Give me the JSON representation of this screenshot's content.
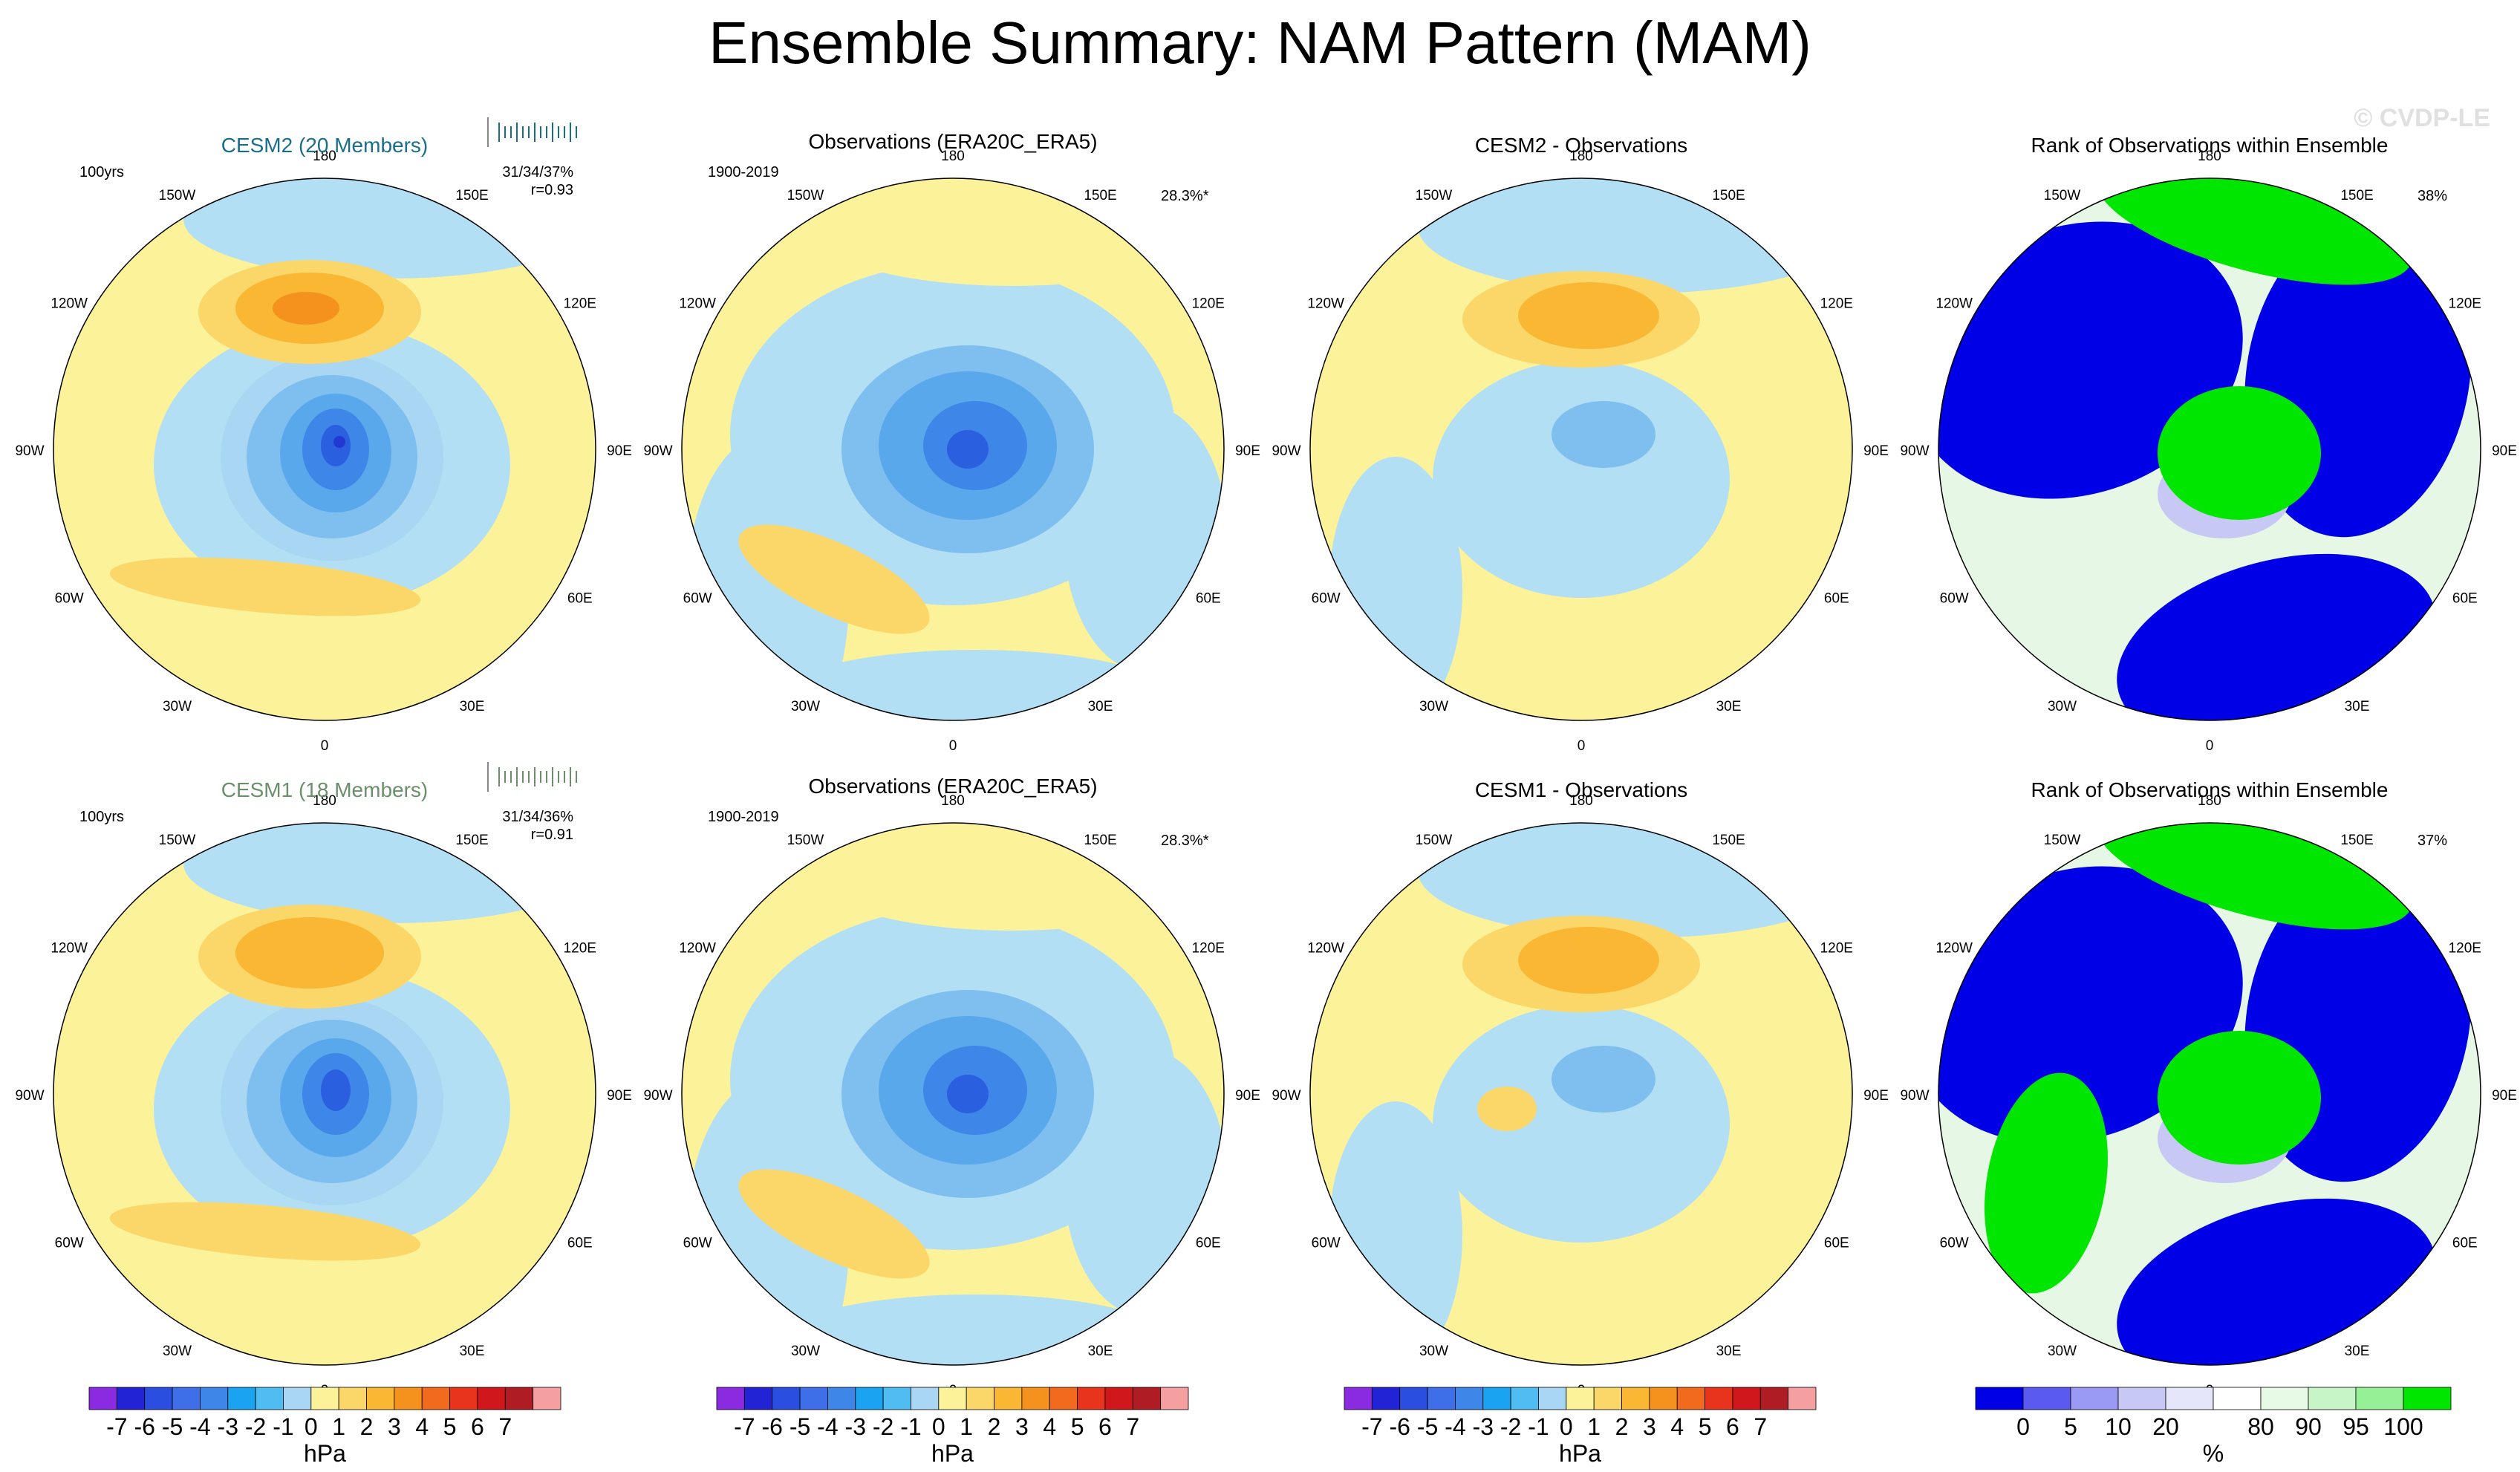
{
  "title": "Ensemble Summary: NAM Pattern (MAM)",
  "watermark": "© CVDP-LE",
  "colors": {
    "ocean": "#b3dff5",
    "land_yellow": "#fbf29a",
    "pos1": "#fbd76a",
    "pos2": "#fab733",
    "pos3": "#f5921d",
    "pos4": "#f0641e",
    "neg1": "#a9d6f2",
    "neg2": "#7fbfef",
    "neg3": "#5aa8ec",
    "neg4": "#3e86e8",
    "neg5": "#2a5fe0",
    "neg6": "#2338d1",
    "rank_blue": "#0000e6",
    "rank_green": "#00e600",
    "rank_lav": "#c8c8f5",
    "rank_pale": "#e6f7e6",
    "model1_title": "#1a6e8c",
    "model2_title": "#6b8f6b"
  },
  "chart_data": [
    {
      "type": "map",
      "panel": "r1c1",
      "title": "CESM2 (20 Members)",
      "left_note": "100yrs",
      "stats_line1": "31/34/37%",
      "stats_line2": "r=0.93",
      "pattern_values": {
        "pacific_high_max": 5,
        "arctic_low_min": -7,
        "atlantic_high_max": 2
      }
    },
    {
      "type": "map",
      "panel": "r1c2",
      "title": "Observations (ERA20C_ERA5)",
      "left_note": "1900-2019",
      "right_note": "28.3%*",
      "pattern_values": {
        "arctic_low_min": -5,
        "atlantic_high_max": 2
      }
    },
    {
      "type": "map",
      "panel": "r1c3",
      "title": "CESM2 - Observations",
      "pattern_values": {
        "pacific_high_max": 3,
        "arctic_low_min": -2
      }
    },
    {
      "type": "map",
      "panel": "r1c4",
      "title": "Rank of Observations within Ensemble",
      "right_note": "38%"
    },
    {
      "type": "map",
      "panel": "r2c1",
      "title": "CESM1 (18 Members)",
      "left_note": "100yrs",
      "stats_line1": "31/34/36%",
      "stats_line2": "r=0.91",
      "pattern_values": {
        "pacific_high_max": 3,
        "arctic_low_min": -6,
        "atlantic_high_max": 2
      }
    },
    {
      "type": "map",
      "panel": "r2c2",
      "title": "Observations (ERA20C_ERA5)",
      "left_note": "1900-2019",
      "right_note": "28.3%*",
      "pattern_values": {
        "arctic_low_min": -5,
        "atlantic_high_max": 2
      }
    },
    {
      "type": "map",
      "panel": "r2c3",
      "title": "CESM1 - Observations",
      "pattern_values": {
        "pacific_high_max": 3,
        "arctic_low_min": -2
      }
    },
    {
      "type": "map",
      "panel": "r2c4",
      "title": "Rank of Observations within Ensemble",
      "right_note": "37%"
    }
  ],
  "longitude_labels": [
    "180",
    "150E",
    "120E",
    "90E",
    "60E",
    "30E",
    "0",
    "30W",
    "60W",
    "90W",
    "120W",
    "150W"
  ],
  "colorbar_hpa": {
    "unit": "hPa",
    "labels": [
      "-7",
      "-6",
      "-5",
      "-4",
      "-3",
      "-2",
      "-1",
      "0",
      "1",
      "2",
      "3",
      "4",
      "5",
      "6",
      "7"
    ],
    "colors": [
      "#8a2be2",
      "#2323d6",
      "#2a4fe0",
      "#3e6ee8",
      "#3e86e8",
      "#1aa3f0",
      "#4fbdf2",
      "#a9d6f2",
      "#fbf29a",
      "#fbd76a",
      "#fab733",
      "#f5921d",
      "#f26a1e",
      "#e8341c",
      "#d0181c",
      "#b01c24",
      "#f4a0a0"
    ]
  },
  "colorbar_rank": {
    "unit": "%",
    "labels": [
      "0",
      "5",
      "10",
      "20",
      "80",
      "90",
      "95",
      "100"
    ],
    "colors": [
      "#0000e6",
      "#5a5af0",
      "#9a9af5",
      "#c8c8f5",
      "#e6e6fa",
      "#ffffff",
      "#e6fae6",
      "#c8f5c8",
      "#96f096",
      "#00e600"
    ]
  }
}
